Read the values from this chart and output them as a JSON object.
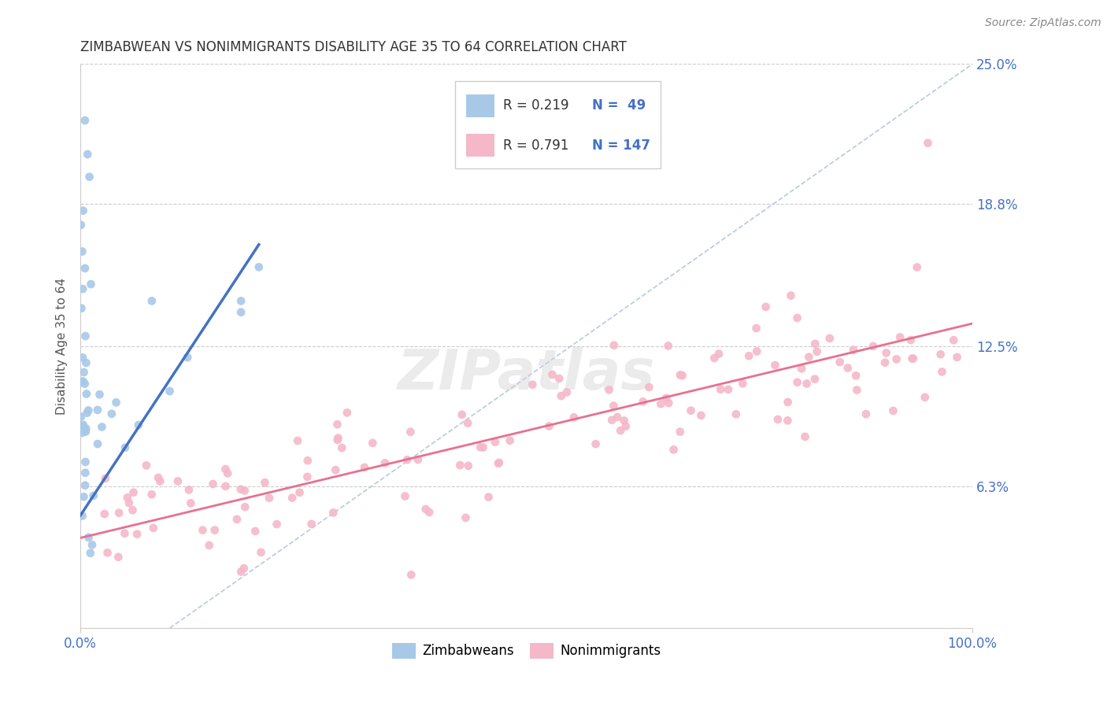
{
  "title": "ZIMBABWEAN VS NONIMMIGRANTS DISABILITY AGE 35 TO 64 CORRELATION CHART",
  "source_text": "Source: ZipAtlas.com",
  "ylabel": "Disability Age 35 to 64",
  "xlim": [
    0,
    100
  ],
  "ylim": [
    0,
    25
  ],
  "ytick_vals": [
    6.3,
    12.5,
    18.8,
    25.0
  ],
  "ytick_labels": [
    "6.3%",
    "12.5%",
    "18.8%",
    "25.0%"
  ],
  "legend_r1": "R = 0.219",
  "legend_n1": "N =  49",
  "legend_r2": "R = 0.791",
  "legend_n2": "N = 147",
  "legend_label1": "Zimbabweans",
  "legend_label2": "Nonimmigrants",
  "blue_scatter_color": "#A8C8E8",
  "pink_scatter_color": "#F4B8C8",
  "blue_line_color": "#4472C4",
  "pink_line_color": "#E87090",
  "ref_line_color": "#B0C4DE",
  "watermark": "ZIPatlas",
  "background_color": "#FFFFFF",
  "grid_color": "#CCCCCC",
  "title_color": "#333333",
  "axis_label_color": "#4472C4",
  "text_color": "#333333",
  "source_color": "#888888"
}
